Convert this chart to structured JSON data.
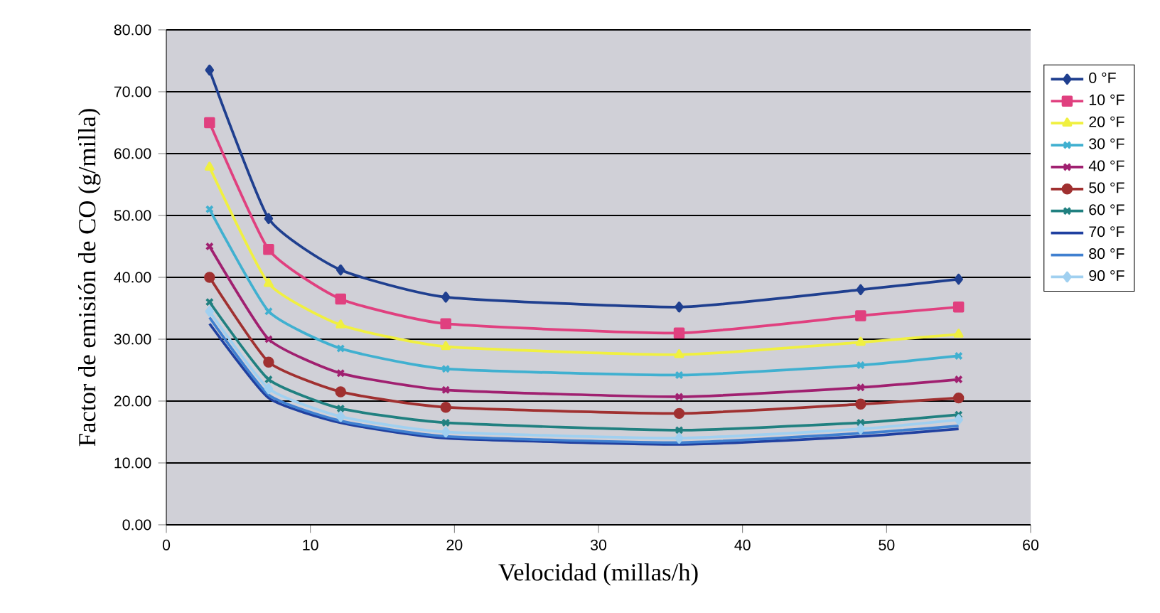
{
  "chart_data": {
    "type": "line",
    "xlabel": "Velocidad (millas/h)",
    "ylabel": "Factor de emisión de CO (g/milla)",
    "x": [
      3,
      7.1,
      12.1,
      19.4,
      35.6,
      48.2,
      55
    ],
    "xlim": [
      0,
      60
    ],
    "xticks": [
      0,
      10,
      20,
      30,
      40,
      50,
      60
    ],
    "ylim": [
      0,
      80
    ],
    "yticks": [
      {
        "value": 0,
        "label": "0.00"
      },
      {
        "value": 10,
        "label": "10.00"
      },
      {
        "value": 20,
        "label": "20.00"
      },
      {
        "value": 30,
        "label": "30.00"
      },
      {
        "value": 40,
        "label": "40.00"
      },
      {
        "value": 50,
        "label": "50.00"
      },
      {
        "value": 60,
        "label": "60.00"
      },
      {
        "value": 70,
        "label": "70.00"
      },
      {
        "value": 80,
        "label": "80.00"
      }
    ],
    "grid": "y",
    "legend": "right",
    "line_style": "solid",
    "series": [
      {
        "name": "0 °F",
        "color": "#1f3f8f",
        "marker": "diamond",
        "values": [
          73.5,
          49.5,
          41.2,
          36.8,
          35.2,
          38,
          39.7
        ]
      },
      {
        "name": "10 °F",
        "color": "#e0407f",
        "marker": "square",
        "values": [
          65,
          44.5,
          36.5,
          32.5,
          31,
          33.8,
          35.2
        ]
      },
      {
        "name": "20 °F",
        "color": "#f0f040",
        "marker": "triangle",
        "values": [
          57.8,
          39,
          32.3,
          28.8,
          27.5,
          29.5,
          30.8
        ]
      },
      {
        "name": "30 °F",
        "color": "#40b0d0",
        "marker": "cross",
        "values": [
          51,
          34.5,
          28.5,
          25.2,
          24.2,
          25.8,
          27.3
        ]
      },
      {
        "name": "40 °F",
        "color": "#a02070",
        "marker": "cross",
        "values": [
          45,
          30,
          24.5,
          21.8,
          20.7,
          22.2,
          23.5
        ]
      },
      {
        "name": "50 °F",
        "color": "#a03030",
        "marker": "circle",
        "values": [
          40,
          26.3,
          21.5,
          19,
          18,
          19.5,
          20.5
        ]
      },
      {
        "name": "60 °F",
        "color": "#208080",
        "marker": "cross",
        "values": [
          36,
          23.5,
          18.8,
          16.5,
          15.3,
          16.5,
          17.8
        ]
      },
      {
        "name": "70 °F",
        "color": "#2040a0",
        "marker": "none",
        "values": [
          32.5,
          20.5,
          16.5,
          14,
          13,
          14.3,
          15.5
        ]
      },
      {
        "name": "80 °F",
        "color": "#4080d0",
        "marker": "none",
        "values": [
          33.5,
          21,
          16.8,
          14.3,
          13.3,
          14.8,
          16
        ]
      },
      {
        "name": "90 °F",
        "color": "#a0d0f0",
        "marker": "diamond",
        "values": [
          34.5,
          22,
          17.5,
          15,
          14,
          15.5,
          17
        ]
      }
    ]
  }
}
